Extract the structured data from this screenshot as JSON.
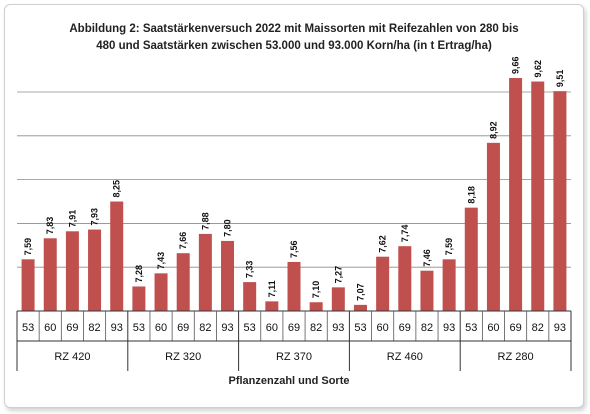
{
  "chart_data": {
    "type": "bar",
    "title_lines": [
      "Abbildung 2: Saatstärkenversuch 2022 mit Maissorten mit Reifezahlen von 280 bis",
      "480 und Saatstärken zwischen 53.000 und 93.000 Korn/ha (in t Ertrag/ha)"
    ],
    "xlabel": "Pflanzenzahl und Sorte",
    "ylabel": "",
    "ylim": [
      7.0,
      9.9
    ],
    "grid": true,
    "legend": "none",
    "bar_color": "#c0504d",
    "groups": [
      {
        "name": "RZ 420",
        "categories": [
          "53",
          "60",
          "69",
          "82",
          "93"
        ],
        "values": [
          7.59,
          7.83,
          7.91,
          7.93,
          8.25
        ],
        "labels": [
          "7,59",
          "7,83",
          "7,91",
          "7,93",
          "8,25"
        ]
      },
      {
        "name": "RZ 320",
        "categories": [
          "53",
          "60",
          "69",
          "82",
          "93"
        ],
        "values": [
          7.28,
          7.43,
          7.66,
          7.88,
          7.8
        ],
        "labels": [
          "7,28",
          "7,43",
          "7,66",
          "7,88",
          "7,80"
        ]
      },
      {
        "name": "RZ 370",
        "categories": [
          "53",
          "60",
          "69",
          "82",
          "93"
        ],
        "values": [
          7.33,
          7.11,
          7.56,
          7.1,
          7.27
        ],
        "labels": [
          "7,33",
          "7,11",
          "7,56",
          "7,10",
          "7,27"
        ]
      },
      {
        "name": "RZ 460",
        "categories": [
          "53",
          "60",
          "69",
          "82",
          "93"
        ],
        "values": [
          7.07,
          7.62,
          7.74,
          7.46,
          7.59
        ],
        "labels": [
          "7,07",
          "7,62",
          "7,74",
          "7,46",
          "7,59"
        ]
      },
      {
        "name": "RZ 280",
        "categories": [
          "53",
          "60",
          "69",
          "82",
          "93"
        ],
        "values": [
          8.18,
          8.92,
          9.66,
          9.62,
          9.51
        ],
        "labels": [
          "8,18",
          "8,92",
          "9,66",
          "9,62",
          "9,51"
        ]
      }
    ]
  }
}
